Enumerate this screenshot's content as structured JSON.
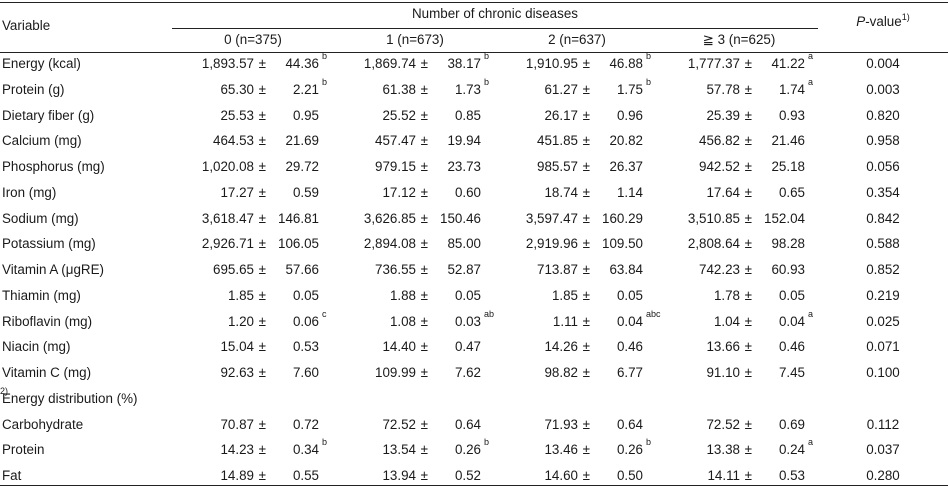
{
  "header": {
    "variable": "Variable",
    "number_of_diseases": "Number of chronic diseases",
    "p_value_italic": "P",
    "p_value_rest": "-value",
    "p_value_note": "1)",
    "groups": [
      "0 (n=375)",
      "1 (n=673)",
      "2 (n=637)",
      "≧ 3 (n=625)"
    ]
  },
  "pm_symbol": "±",
  "rows": [
    {
      "label": "Energy (kcal)",
      "note": "",
      "cells": [
        [
          "1,893.57",
          "44.36",
          "b"
        ],
        [
          "1,869.74",
          "38.17",
          "b"
        ],
        [
          "1,910.95",
          "46.88",
          "b"
        ],
        [
          "1,777.37",
          "41.22",
          "a"
        ]
      ],
      "p": "0.004"
    },
    {
      "label": "Protein (g)",
      "note": "",
      "cells": [
        [
          "65.30",
          "2.21",
          "b"
        ],
        [
          "61.38",
          "1.73",
          "b"
        ],
        [
          "61.27",
          "1.75",
          "b"
        ],
        [
          "57.78",
          "1.74",
          "a"
        ]
      ],
      "p": "0.003"
    },
    {
      "label": "Dietary fiber (g)",
      "note": "",
      "cells": [
        [
          "25.53",
          "0.95",
          ""
        ],
        [
          "25.52",
          "0.85",
          ""
        ],
        [
          "26.17",
          "0.96",
          ""
        ],
        [
          "25.39",
          "0.93",
          ""
        ]
      ],
      "p": "0.820"
    },
    {
      "label": "Calcium (mg)",
      "note": "",
      "cells": [
        [
          "464.53",
          "21.69",
          ""
        ],
        [
          "457.47",
          "19.94",
          ""
        ],
        [
          "451.85",
          "20.82",
          ""
        ],
        [
          "456.82",
          "21.46",
          ""
        ]
      ],
      "p": "0.958"
    },
    {
      "label": "Phosphorus (mg)",
      "note": "",
      "cells": [
        [
          "1,020.08",
          "29.72",
          ""
        ],
        [
          "979.15",
          "23.73",
          ""
        ],
        [
          "985.57",
          "26.37",
          ""
        ],
        [
          "942.52",
          "25.18",
          ""
        ]
      ],
      "p": "0.056"
    },
    {
      "label": "Iron (mg)",
      "note": "",
      "cells": [
        [
          "17.27",
          "0.59",
          ""
        ],
        [
          "17.12",
          "0.60",
          ""
        ],
        [
          "18.74",
          "1.14",
          ""
        ],
        [
          "17.64",
          "0.65",
          ""
        ]
      ],
      "p": "0.354"
    },
    {
      "label": "Sodium (mg)",
      "note": "",
      "cells": [
        [
          "3,618.47",
          "146.81",
          ""
        ],
        [
          "3,626.85",
          "150.46",
          ""
        ],
        [
          "3,597.47",
          "160.29",
          ""
        ],
        [
          "3,510.85",
          "152.04",
          ""
        ]
      ],
      "p": "0.842"
    },
    {
      "label": "Potassium (mg)",
      "note": "",
      "cells": [
        [
          "2,926.71",
          "106.05",
          ""
        ],
        [
          "2,894.08",
          "85.00",
          ""
        ],
        [
          "2,919.96",
          "109.50",
          ""
        ],
        [
          "2,808.64",
          "98.28",
          ""
        ]
      ],
      "p": "0.588"
    },
    {
      "label": "Vitamin A (μgRE)",
      "note": "",
      "cells": [
        [
          "695.65",
          "57.66",
          ""
        ],
        [
          "736.55",
          "52.87",
          ""
        ],
        [
          "713.87",
          "63.84",
          ""
        ],
        [
          "742.23",
          "60.93",
          ""
        ]
      ],
      "p": "0.852"
    },
    {
      "label": "Thiamin (mg)",
      "note": "",
      "cells": [
        [
          "1.85",
          "0.05",
          ""
        ],
        [
          "1.88",
          "0.05",
          ""
        ],
        [
          "1.85",
          "0.05",
          ""
        ],
        [
          "1.78",
          "0.05",
          ""
        ]
      ],
      "p": "0.219"
    },
    {
      "label": "Riboflavin (mg)",
      "note": "",
      "cells": [
        [
          "1.20",
          "0.06",
          "c"
        ],
        [
          "1.08",
          "0.03",
          "ab"
        ],
        [
          "1.11",
          "0.04",
          "abc"
        ],
        [
          "1.04",
          "0.04",
          "a"
        ]
      ],
      "p": "0.025"
    },
    {
      "label": "Niacin (mg)",
      "note": "",
      "cells": [
        [
          "15.04",
          "0.53",
          ""
        ],
        [
          "14.40",
          "0.47",
          ""
        ],
        [
          "14.26",
          "0.46",
          ""
        ],
        [
          "13.66",
          "0.46",
          ""
        ]
      ],
      "p": "0.071"
    },
    {
      "label": "Vitamin C (mg)",
      "note": "",
      "cells": [
        [
          "92.63",
          "7.60",
          ""
        ],
        [
          "109.99",
          "7.62",
          ""
        ],
        [
          "98.82",
          "6.77",
          ""
        ],
        [
          "91.10",
          "7.45",
          ""
        ]
      ],
      "p": "0.100"
    },
    {
      "label": "Energy distribution (%)",
      "note": "2)",
      "cells": [],
      "p": ""
    },
    {
      "label": "Carbohydrate",
      "note": "",
      "cells": [
        [
          "70.87",
          "0.72",
          ""
        ],
        [
          "72.52",
          "0.64",
          ""
        ],
        [
          "71.93",
          "0.64",
          ""
        ],
        [
          "72.52",
          "0.69",
          ""
        ]
      ],
      "p": "0.112"
    },
    {
      "label": "Protein",
      "note": "",
      "cells": [
        [
          "14.23",
          "0.34",
          "b"
        ],
        [
          "13.54",
          "0.26",
          "b"
        ],
        [
          "13.46",
          "0.26",
          "b"
        ],
        [
          "13.38",
          "0.24",
          "a"
        ]
      ],
      "p": "0.037"
    },
    {
      "label": "Fat",
      "note": "",
      "cells": [
        [
          "14.89",
          "0.55",
          ""
        ],
        [
          "13.94",
          "0.52",
          ""
        ],
        [
          "14.60",
          "0.50",
          ""
        ],
        [
          "14.11",
          "0.53",
          ""
        ]
      ],
      "p": "0.280"
    }
  ]
}
